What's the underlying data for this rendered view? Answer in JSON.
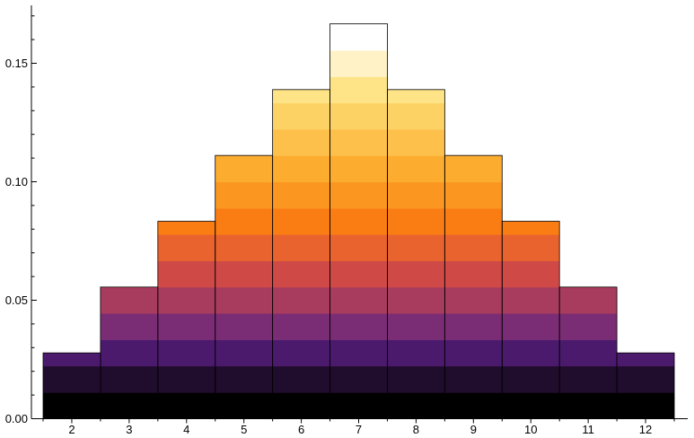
{
  "chart_data": {
    "type": "bar",
    "title": "",
    "xlabel": "",
    "ylabel": "",
    "categories": [
      "2",
      "3",
      "4",
      "5",
      "6",
      "7",
      "8",
      "9",
      "10",
      "11",
      "12"
    ],
    "values": [
      0.02778,
      0.05556,
      0.08333,
      0.11111,
      0.13889,
      0.16667,
      0.13889,
      0.11111,
      0.08333,
      0.05556,
      0.02778
    ],
    "ylim": [
      0,
      0.175
    ],
    "y_ticks": [
      {
        "value": 0,
        "label": "0.00"
      },
      {
        "value": 0.05,
        "label": "0.05"
      },
      {
        "value": 0.1,
        "label": "0.10"
      },
      {
        "value": 0.15,
        "label": "0.15"
      }
    ],
    "y_minor_step": 0.01,
    "grid": false,
    "legend": "none",
    "band_edges": [
      0,
      0.011,
      0.0222,
      0.0333,
      0.0444,
      0.0555,
      0.0666,
      0.0777,
      0.0888,
      0.0999,
      0.111,
      0.1221,
      0.1332,
      0.1443,
      0.1554,
      0.1665
    ],
    "band_colors": [
      "#000000",
      "#200c2d",
      "#4b1a6c",
      "#7a2c75",
      "#a83c5f",
      "#cf4a47",
      "#e8632e",
      "#fa7d14",
      "#fb9720",
      "#fcac2f",
      "#fdc04a",
      "#fdd264",
      "#fee486",
      "#fef2c6",
      "#ffffff"
    ]
  }
}
